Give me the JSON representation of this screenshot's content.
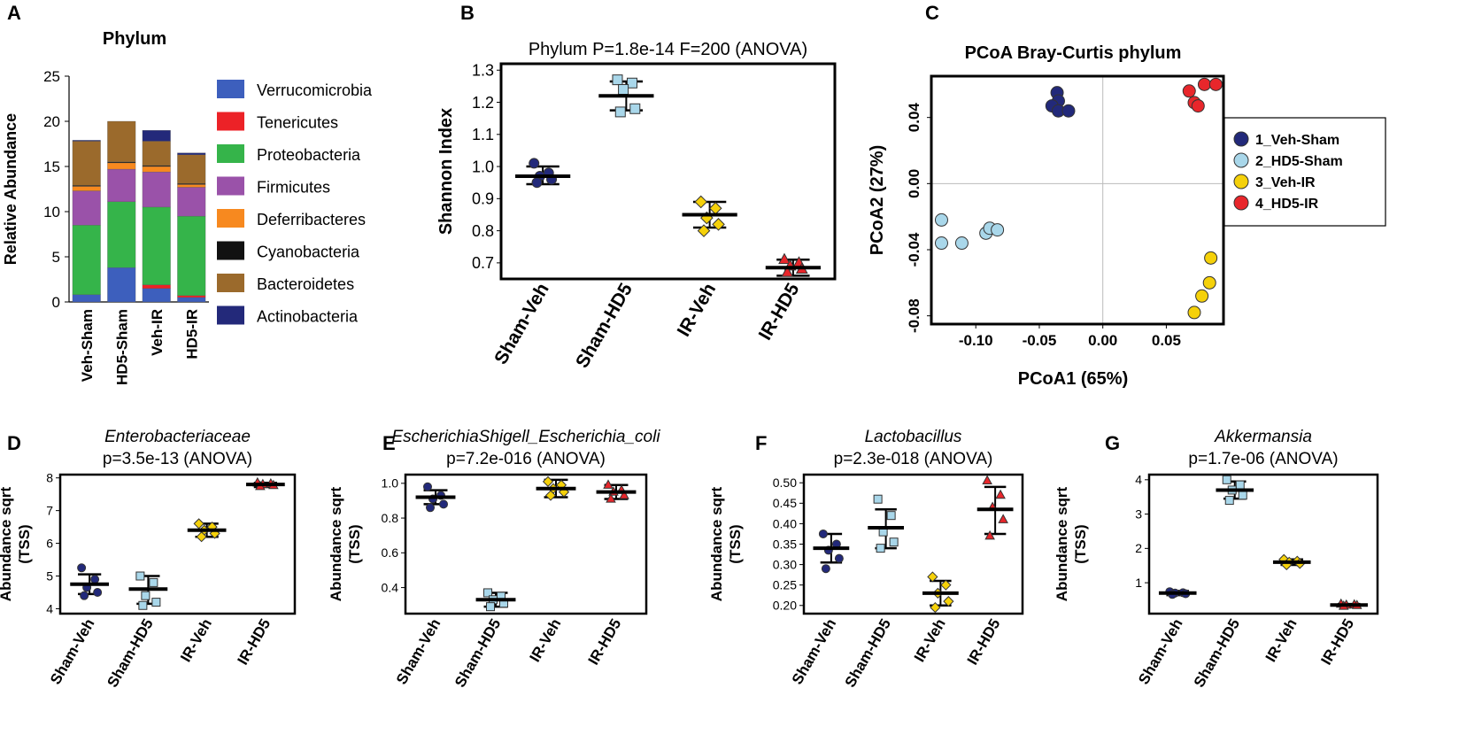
{
  "colors": {
    "veh_sham": "#22297a",
    "hd5_sham": "#a9d7ea",
    "veh_ir": "#f5d10a",
    "hd5_ir": "#e8262b",
    "verrucomicrobia": "#3d5fbd",
    "tenericutes": "#ec2227",
    "proteobacteria": "#35b44a",
    "firmicutes": "#9a52a9",
    "deferribacteres": "#f7891f",
    "cyanobacteria": "#111111",
    "bacteroidetes": "#9b6a2c",
    "actinobacteria": "#23297a"
  },
  "chart_data": [
    {
      "panel": "A",
      "type": "bar",
      "stacked": true,
      "title": "Phylum",
      "xlabel": "",
      "ylabel": "Relative Abundance",
      "ylim": [
        0,
        25
      ],
      "yticks": [
        "0",
        "5",
        "10",
        "15",
        "20",
        "25"
      ],
      "categories": [
        "Veh-Sham",
        "HD5-Sham",
        "Veh-IR",
        "HD5-IR"
      ],
      "series": [
        {
          "name": "Verrucomicrobia",
          "color": "#3d5fbd",
          "values": [
            0.8,
            3.8,
            1.5,
            0.5
          ]
        },
        {
          "name": "Tenericutes",
          "color": "#ec2227",
          "values": [
            0,
            0,
            0.4,
            0.2
          ]
        },
        {
          "name": "Proteobacteria",
          "color": "#35b44a",
          "values": [
            7.7,
            7.3,
            8.6,
            8.8
          ]
        },
        {
          "name": "Firmicutes",
          "color": "#9a52a9",
          "values": [
            3.8,
            3.6,
            3.9,
            3.2
          ]
        },
        {
          "name": "Deferribacteres",
          "color": "#f7891f",
          "values": [
            0.5,
            0.7,
            0.6,
            0.3
          ]
        },
        {
          "name": "Cyanobacteria",
          "color": "#111111",
          "values": [
            0.1,
            0.1,
            0.1,
            0.1
          ]
        },
        {
          "name": "Bacteroidetes",
          "color": "#9b6a2c",
          "values": [
            4.9,
            4.5,
            2.7,
            3.2
          ]
        },
        {
          "name": "Actinobacteria",
          "color": "#23297a",
          "values": [
            0.1,
            0,
            1.2,
            0.2
          ]
        }
      ]
    },
    {
      "panel": "B",
      "type": "scatter",
      "title": "Phylum P=1.8e-14 F=200 (ANOVA)",
      "xlabel": "",
      "ylabel": "Shannon Index",
      "ylim": [
        0.65,
        1.32
      ],
      "yticks": [
        0.7,
        0.8,
        0.9,
        1.0,
        1.1,
        1.2,
        1.3
      ],
      "ytick_labels": [
        "0.7",
        "0.8",
        "0.9",
        "1.0",
        "1.1",
        "1.2",
        "1.3"
      ],
      "categories": [
        "Sham-Veh",
        "Sham-HD5",
        "IR-Veh",
        "IR-HD5"
      ],
      "groups": [
        {
          "marker": "circle",
          "color": "#22297a",
          "mean": 0.97,
          "err_hi": 1.0,
          "err_lo": 0.945,
          "points": [
            1.01,
            0.98,
            0.97,
            0.96,
            0.95
          ]
        },
        {
          "marker": "square",
          "color": "#a9d7ea",
          "mean": 1.22,
          "err_hi": 1.265,
          "err_lo": 1.175,
          "points": [
            1.27,
            1.26,
            1.24,
            1.18,
            1.17
          ]
        },
        {
          "marker": "diamond",
          "color": "#f5d10a",
          "mean": 0.85,
          "err_hi": 0.89,
          "err_lo": 0.81,
          "points": [
            0.89,
            0.87,
            0.84,
            0.82,
            0.8
          ]
        },
        {
          "marker": "triangle",
          "color": "#e8262b",
          "mean": 0.685,
          "err_hi": 0.71,
          "err_lo": 0.66,
          "points": [
            0.71,
            0.7,
            0.69,
            0.68,
            0.67
          ]
        }
      ]
    },
    {
      "panel": "C",
      "type": "scatter",
      "title": "PCoA Bray-Curtis phylum",
      "xlabel": "PCoA1 (65%)",
      "ylabel": "PCoA2 (27%)",
      "xlim": [
        -0.135,
        0.095
      ],
      "ylim": [
        -0.085,
        0.065
      ],
      "xticks": [
        -0.1,
        -0.05,
        0.0,
        0.05
      ],
      "xtick_labels": [
        "-0.10",
        "-0.05",
        "0.00",
        "0.05"
      ],
      "yticks": [
        -0.08,
        -0.04,
        0.0,
        0.04
      ],
      "ytick_labels": [
        "-0.08",
        "-0.04",
        "0.00",
        "0.04"
      ],
      "legend": {
        "location": "right",
        "entries": [
          "1_Veh-Sham",
          "2_HD5-Sham",
          "3_Veh-IR",
          "4_HD5-IR"
        ],
        "colors": [
          "#22297a",
          "#a9d7ea",
          "#f5d10a",
          "#e8262b"
        ]
      },
      "series": [
        {
          "name": "1_Veh-Sham",
          "color": "#22297a",
          "points": [
            [
              -0.036,
              0.055
            ],
            [
              -0.035,
              0.05
            ],
            [
              -0.04,
              0.047
            ],
            [
              -0.035,
              0.044
            ],
            [
              -0.027,
              0.044
            ]
          ]
        },
        {
          "name": "2_HD5-Sham",
          "color": "#a9d7ea",
          "points": [
            [
              -0.127,
              -0.022
            ],
            [
              -0.127,
              -0.036
            ],
            [
              -0.111,
              -0.036
            ],
            [
              -0.092,
              -0.03
            ],
            [
              -0.089,
              -0.027
            ],
            [
              -0.083,
              -0.028
            ]
          ]
        },
        {
          "name": "3_Veh-IR",
          "color": "#f5d10a",
          "points": [
            [
              0.085,
              -0.045
            ],
            [
              0.084,
              -0.06
            ],
            [
              0.078,
              -0.068
            ],
            [
              0.072,
              -0.078
            ]
          ]
        },
        {
          "name": "4_HD5-IR",
          "color": "#e8262b",
          "points": [
            [
              0.068,
              0.056
            ],
            [
              0.072,
              0.049
            ],
            [
              0.075,
              0.047
            ],
            [
              0.08,
              0.06
            ],
            [
              0.089,
              0.06
            ]
          ]
        }
      ]
    },
    {
      "panel": "D",
      "type": "scatter",
      "title": "Enterobacteriaceae",
      "subtitle": "p=3.5e-13 (ANOVA)",
      "xlabel": "",
      "ylabel": "Abundance sqrt\n(TSS)",
      "ylim": [
        3.85,
        8.1
      ],
      "yticks": [
        4,
        5,
        6,
        7,
        8
      ],
      "ytick_labels": [
        "4",
        "5",
        "6",
        "7",
        "8"
      ],
      "categories": [
        "Sham-Veh",
        "Sham-HD5",
        "IR-Veh",
        "IR-HD5"
      ],
      "groups": [
        {
          "marker": "circle",
          "color": "#22297a",
          "mean": 4.75,
          "err_hi": 5.05,
          "err_lo": 4.45,
          "points": [
            5.25,
            4.9,
            4.65,
            4.5,
            4.4
          ]
        },
        {
          "marker": "square",
          "color": "#a9d7ea",
          "mean": 4.6,
          "err_hi": 5.0,
          "err_lo": 4.15,
          "points": [
            5.0,
            4.8,
            4.4,
            4.2,
            4.1
          ]
        },
        {
          "marker": "diamond",
          "color": "#f5d10a",
          "mean": 6.4,
          "err_hi": 6.6,
          "err_lo": 6.2,
          "points": [
            6.6,
            6.5,
            6.4,
            6.3,
            6.2
          ]
        },
        {
          "marker": "triangle",
          "color": "#e8262b",
          "mean": 7.8,
          "err_hi": 7.85,
          "err_lo": 7.72,
          "points": [
            7.85,
            7.82,
            7.8,
            7.77,
            7.74
          ]
        }
      ]
    },
    {
      "panel": "E",
      "type": "scatter",
      "title": "EscherichiaShigell_Escherichia_coli",
      "subtitle": "p=7.2e-016 (ANOVA)",
      "xlabel": "",
      "ylabel": "Abundance sqrt\n(TSS)",
      "ylim": [
        0.25,
        1.05
      ],
      "yticks": [
        0.4,
        0.6,
        0.8,
        1.0
      ],
      "ytick_labels": [
        "0.4",
        "0.6",
        "0.8",
        "1.0"
      ],
      "categories": [
        "Sham-Veh",
        "Sham-HD5",
        "IR-Veh",
        "IR-HD5"
      ],
      "groups": [
        {
          "marker": "circle",
          "color": "#22297a",
          "mean": 0.92,
          "err_hi": 0.96,
          "err_lo": 0.88,
          "points": [
            0.98,
            0.93,
            0.91,
            0.88,
            0.86
          ]
        },
        {
          "marker": "square",
          "color": "#a9d7ea",
          "mean": 0.33,
          "err_hi": 0.37,
          "err_lo": 0.29,
          "points": [
            0.37,
            0.35,
            0.33,
            0.31,
            0.29
          ]
        },
        {
          "marker": "diamond",
          "color": "#f5d10a",
          "mean": 0.97,
          "err_hi": 1.02,
          "err_lo": 0.92,
          "points": [
            1.01,
            0.99,
            0.97,
            0.95,
            0.93
          ]
        },
        {
          "marker": "triangle",
          "color": "#e8262b",
          "mean": 0.95,
          "err_hi": 0.99,
          "err_lo": 0.91,
          "points": [
            0.99,
            0.96,
            0.95,
            0.93,
            0.91
          ]
        }
      ]
    },
    {
      "panel": "F",
      "type": "scatter",
      "title": "Lactobacillus",
      "subtitle": "p=2.3e-018 (ANOVA)",
      "xlabel": "",
      "ylabel": "Abundance sqrt\n(TSS)",
      "ylim": [
        0.18,
        0.52
      ],
      "yticks": [
        0.2,
        0.25,
        0.3,
        0.35,
        0.4,
        0.45,
        0.5
      ],
      "ytick_labels": [
        "0.20",
        "0.25",
        "0.30",
        "0.35",
        "0.40",
        "0.45",
        "0.50"
      ],
      "categories": [
        "Sham-Veh",
        "Sham-HD5",
        "IR-Veh",
        "IR-HD5"
      ],
      "groups": [
        {
          "marker": "circle",
          "color": "#22297a",
          "mean": 0.34,
          "err_hi": 0.375,
          "err_lo": 0.305,
          "points": [
            0.375,
            0.35,
            0.335,
            0.315,
            0.29
          ]
        },
        {
          "marker": "square",
          "color": "#a9d7ea",
          "mean": 0.39,
          "err_hi": 0.435,
          "err_lo": 0.34,
          "points": [
            0.46,
            0.42,
            0.38,
            0.355,
            0.34
          ]
        },
        {
          "marker": "diamond",
          "color": "#f5d10a",
          "mean": 0.23,
          "err_hi": 0.26,
          "err_lo": 0.2,
          "points": [
            0.27,
            0.25,
            0.23,
            0.21,
            0.195
          ]
        },
        {
          "marker": "triangle",
          "color": "#e8262b",
          "mean": 0.435,
          "err_hi": 0.49,
          "err_lo": 0.375,
          "points": [
            0.505,
            0.47,
            0.44,
            0.41,
            0.37
          ]
        }
      ]
    },
    {
      "panel": "G",
      "type": "scatter",
      "title": "Akkermansia",
      "subtitle": "p=1.7e-06 (ANOVA)",
      "xlabel": "",
      "ylabel": "Abundance sqrt\n(TSS)",
      "ylim": [
        0.1,
        4.15
      ],
      "yticks": [
        1,
        2,
        3,
        4
      ],
      "ytick_labels": [
        "1",
        "2",
        "3",
        "4"
      ],
      "categories": [
        "Sham-Veh",
        "Sham-HD5",
        "IR-Veh",
        "IR-HD5"
      ],
      "groups": [
        {
          "marker": "circle",
          "color": "#22297a",
          "mean": 0.7,
          "err_hi": 0.76,
          "err_lo": 0.64,
          "points": [
            0.74,
            0.71,
            0.7,
            0.68,
            0.66
          ]
        },
        {
          "marker": "square",
          "color": "#a9d7ea",
          "mean": 3.7,
          "err_hi": 3.95,
          "err_lo": 3.45,
          "points": [
            4.0,
            3.85,
            3.7,
            3.55,
            3.4
          ]
        },
        {
          "marker": "diamond",
          "color": "#f5d10a",
          "mean": 1.6,
          "err_hi": 1.68,
          "err_lo": 1.52,
          "points": [
            1.68,
            1.63,
            1.6,
            1.56,
            1.52
          ]
        },
        {
          "marker": "triangle",
          "color": "#e8262b",
          "mean": 0.35,
          "err_hi": 0.38,
          "err_lo": 0.32,
          "points": [
            0.38,
            0.36,
            0.35,
            0.34,
            0.32
          ]
        }
      ]
    }
  ]
}
